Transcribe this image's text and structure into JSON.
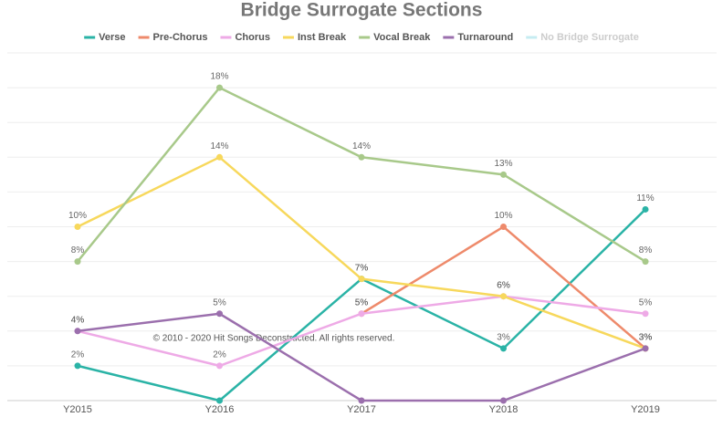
{
  "chart_data": {
    "type": "line",
    "title": "Bridge Surrogate Sections",
    "annotation": "© 2010 - 2020 Hit Songs Deconstructed. All rights reserved.",
    "categories": [
      "Y2015",
      "Y2016",
      "Y2017",
      "Y2018",
      "Y2019"
    ],
    "ylim": [
      0,
      20
    ],
    "yticks": [
      0,
      2,
      4,
      6,
      8,
      10,
      12,
      14,
      16,
      18,
      20
    ],
    "grid": true,
    "legend": "top",
    "series": [
      {
        "name": "Verse",
        "color": "#2ab3a6",
        "values": [
          2,
          0,
          7,
          3,
          11
        ],
        "value_labels": [
          "2%",
          null,
          "7%",
          "3%",
          "11%"
        ]
      },
      {
        "name": "Pre-Chorus",
        "color": "#ee8a6b",
        "values": [
          null,
          null,
          5,
          10,
          3
        ],
        "value_labels": [
          null,
          null,
          "5%",
          "10%",
          "3%"
        ]
      },
      {
        "name": "Chorus",
        "color": "#eeaae6",
        "values": [
          4,
          2,
          5,
          6,
          5
        ],
        "value_labels": [
          "4%",
          "2%",
          "5%",
          "6%",
          "5%"
        ]
      },
      {
        "name": "Inst Break",
        "color": "#f7d85c",
        "values": [
          10,
          14,
          7,
          6,
          3
        ],
        "value_labels": [
          "10%",
          "14%",
          "7%",
          "6%",
          "3%"
        ]
      },
      {
        "name": "Vocal Break",
        "color": "#a8c98a",
        "values": [
          8,
          18,
          14,
          13,
          8
        ],
        "value_labels": [
          "8%",
          "18%",
          "14%",
          "13%",
          "8%"
        ]
      },
      {
        "name": "Turnaround",
        "color": "#9b6fad",
        "values": [
          4,
          5,
          0,
          0,
          3
        ],
        "value_labels": [
          "4%",
          "5%",
          null,
          null,
          "3%"
        ]
      },
      {
        "name": "No Bridge Surrogate",
        "color": "#c6ecf2",
        "hidden": true,
        "values": [
          null,
          null,
          null,
          null,
          null
        ]
      }
    ]
  }
}
